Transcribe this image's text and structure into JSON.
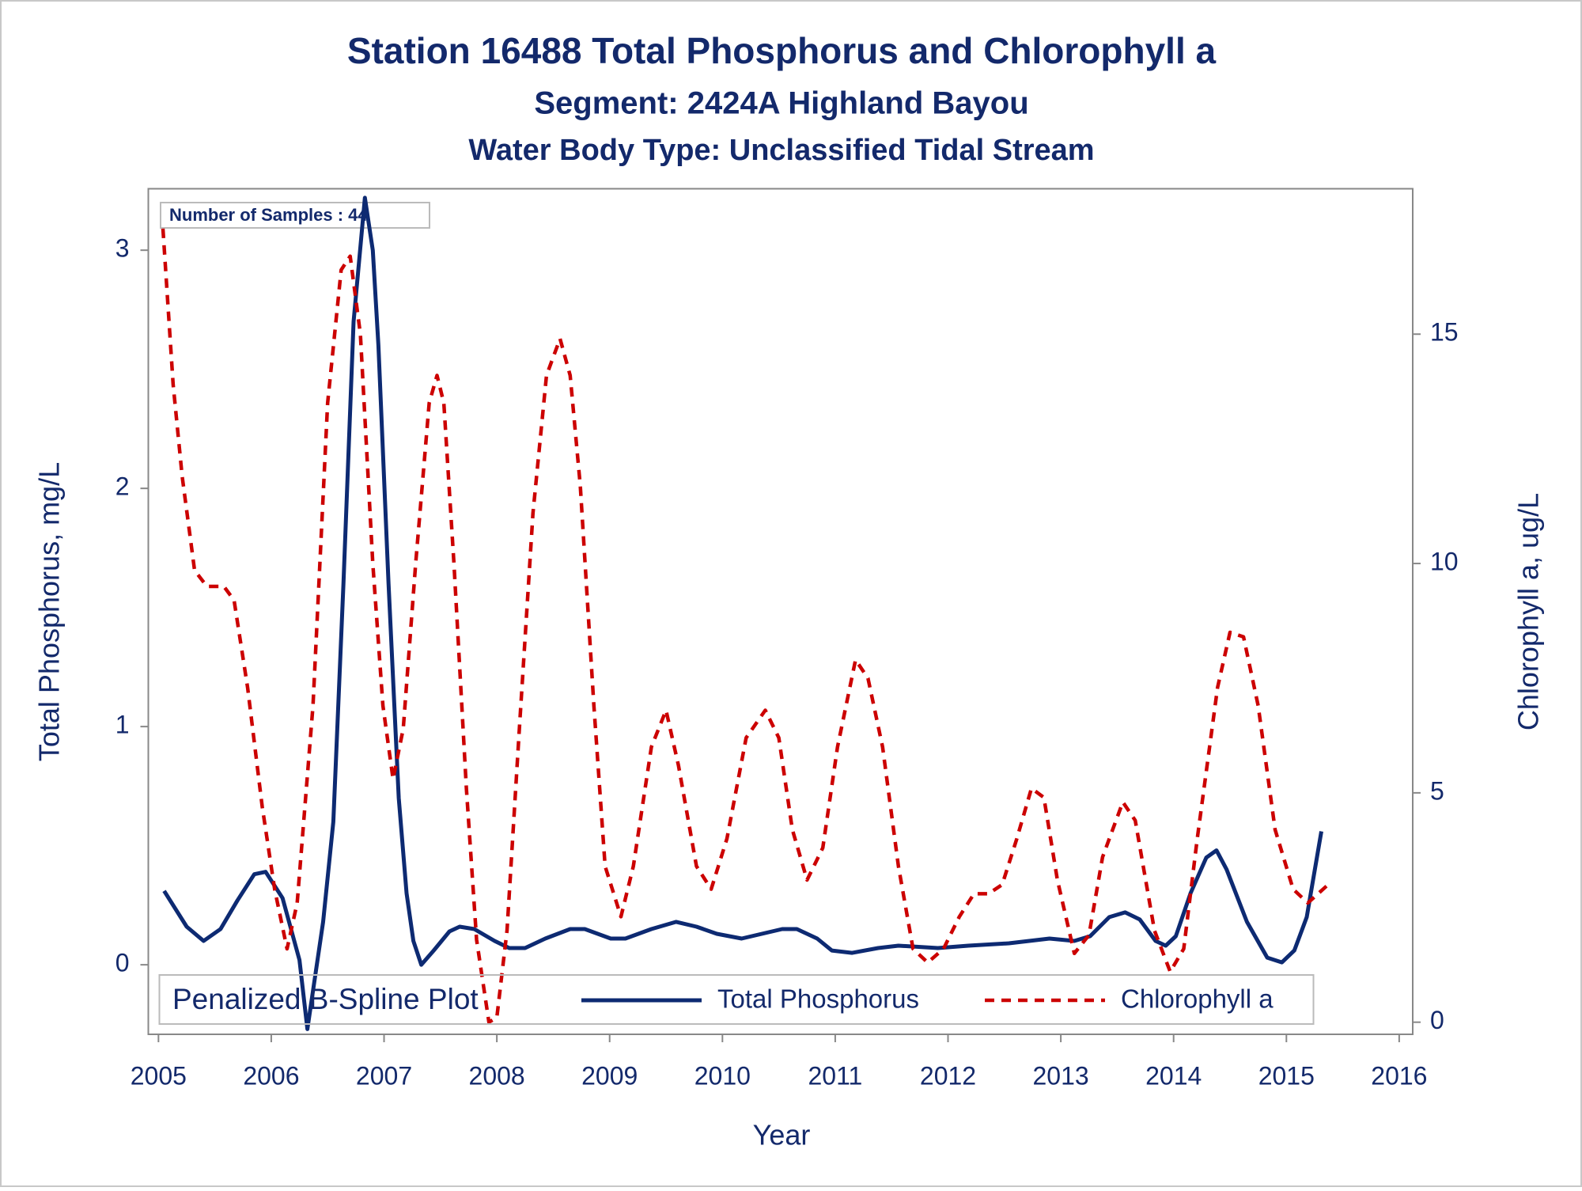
{
  "chart_data": {
    "type": "line",
    "title": "Station 16488  Total Phosphorus and Chlorophyll a",
    "subtitle": "Segment: 2424A  Highland Bayou",
    "subtitle2": "Water Body Type: Unclassified Tidal Stream",
    "annotation": "Number of Samples : 44",
    "xlabel": "Year",
    "ylabel": "Total Phosphorus, mg/L",
    "y2label": "Chlorophyll a, ug/L",
    "legend_title": "Penalized B-Spline Plot",
    "legend": "bottom",
    "xlim": [
      2004.91,
      2016.12
    ],
    "xticks": [
      2005,
      2006,
      2007,
      2008,
      2009,
      2010,
      2011,
      2012,
      2013,
      2014,
      2015,
      2016
    ],
    "ylim": [
      -0.292,
      3.258
    ],
    "yticks": [
      0,
      1,
      2,
      3
    ],
    "y2lim": [
      -0.264,
      18.17
    ],
    "y2ticks": [
      0,
      5,
      10,
      15
    ],
    "grid": false,
    "series": [
      {
        "name": "Total Phosphorus",
        "color": "#0d2a72",
        "dash": false,
        "axis": "y",
        "x": [
          2005.05,
          2005.25,
          2005.4,
          2005.55,
          2005.7,
          2005.85,
          2005.95,
          2006.1,
          2006.25,
          2006.32,
          2006.46,
          2006.55,
          2006.64,
          2006.73,
          2006.83,
          2006.9,
          2006.95,
          2007.04,
          2007.13,
          2007.2,
          2007.26,
          2007.33,
          2007.44,
          2007.58,
          2007.67,
          2007.8,
          2007.98,
          2008.11,
          2008.25,
          2008.43,
          2008.65,
          2008.78,
          2009.01,
          2009.14,
          2009.37,
          2009.59,
          2009.77,
          2009.95,
          2010.17,
          2010.35,
          2010.53,
          2010.66,
          2010.84,
          2010.97,
          2011.15,
          2011.38,
          2011.56,
          2011.91,
          2012.18,
          2012.54,
          2012.9,
          2013.12,
          2013.26,
          2013.43,
          2013.57,
          2013.7,
          2013.84,
          2013.93,
          2014.02,
          2014.15,
          2014.29,
          2014.38,
          2014.47,
          2014.65,
          2014.83,
          2014.96,
          2015.07,
          2015.18,
          2015.31
        ],
        "values": [
          0.31,
          0.16,
          0.1,
          0.15,
          0.27,
          0.38,
          0.39,
          0.28,
          0.02,
          -0.27,
          0.18,
          0.6,
          1.6,
          2.7,
          3.22,
          3.0,
          2.6,
          1.6,
          0.7,
          0.3,
          0.1,
          0.0,
          0.06,
          0.14,
          0.16,
          0.15,
          0.1,
          0.07,
          0.07,
          0.11,
          0.15,
          0.15,
          0.11,
          0.11,
          0.15,
          0.18,
          0.16,
          0.13,
          0.11,
          0.13,
          0.15,
          0.15,
          0.11,
          0.06,
          0.05,
          0.07,
          0.08,
          0.07,
          0.08,
          0.09,
          0.11,
          0.1,
          0.12,
          0.2,
          0.22,
          0.19,
          0.1,
          0.08,
          0.12,
          0.3,
          0.45,
          0.48,
          0.4,
          0.18,
          0.03,
          0.01,
          0.06,
          0.2,
          0.56
        ]
      },
      {
        "name": "Chlorophyll a",
        "color": "#cc0000",
        "dash": true,
        "axis": "y2",
        "x": [
          2005.04,
          2005.13,
          2005.21,
          2005.32,
          2005.43,
          2005.58,
          2005.67,
          2005.79,
          2005.92,
          2006.03,
          2006.14,
          2006.23,
          2006.37,
          2006.5,
          2006.62,
          2006.7,
          2006.79,
          2006.9,
          2006.99,
          2007.08,
          2007.17,
          2007.28,
          2007.4,
          2007.47,
          2007.53,
          2007.62,
          2007.73,
          2007.82,
          2007.93,
          2008.0,
          2008.09,
          2008.2,
          2008.32,
          2008.44,
          2008.56,
          2008.65,
          2008.74,
          2008.86,
          2008.96,
          2009.1,
          2009.21,
          2009.37,
          2009.5,
          2009.61,
          2009.77,
          2009.9,
          2010.04,
          2010.21,
          2010.38,
          2010.5,
          2010.62,
          2010.75,
          2010.89,
          2011.02,
          2011.18,
          2011.29,
          2011.42,
          2011.56,
          2011.69,
          2011.82,
          2011.96,
          2012.1,
          2012.23,
          2012.36,
          2012.48,
          2012.61,
          2012.74,
          2012.85,
          2012.97,
          2013.12,
          2013.25,
          2013.37,
          2013.55,
          2013.66,
          2013.83,
          2013.97,
          2014.09,
          2014.21,
          2014.39,
          2014.5,
          2014.62,
          2014.75,
          2014.9,
          2015.06,
          2015.19,
          2015.37
        ],
        "values": [
          17.3,
          13.9,
          11.9,
          9.85,
          9.5,
          9.5,
          9.2,
          7.3,
          4.7,
          2.9,
          1.6,
          2.6,
          6.9,
          13.5,
          16.4,
          16.7,
          15.0,
          10.0,
          6.9,
          5.3,
          6.4,
          10.0,
          13.5,
          14.1,
          13.5,
          10.0,
          5.1,
          1.8,
          0.0,
          0.1,
          2.0,
          6.4,
          11.1,
          14.1,
          14.9,
          14.1,
          11.7,
          6.9,
          3.4,
          2.3,
          3.4,
          6.0,
          6.8,
          5.6,
          3.4,
          2.9,
          4.0,
          6.2,
          6.8,
          6.2,
          4.2,
          3.1,
          3.8,
          6.0,
          7.9,
          7.5,
          6.0,
          3.4,
          1.6,
          1.3,
          1.6,
          2.3,
          2.8,
          2.8,
          3.0,
          4.0,
          5.1,
          4.9,
          3.1,
          1.5,
          1.9,
          3.6,
          4.8,
          4.4,
          2.0,
          1.1,
          1.6,
          4.0,
          7.3,
          8.5,
          8.4,
          6.9,
          4.2,
          2.9,
          2.6,
          3.0
        ]
      }
    ]
  }
}
